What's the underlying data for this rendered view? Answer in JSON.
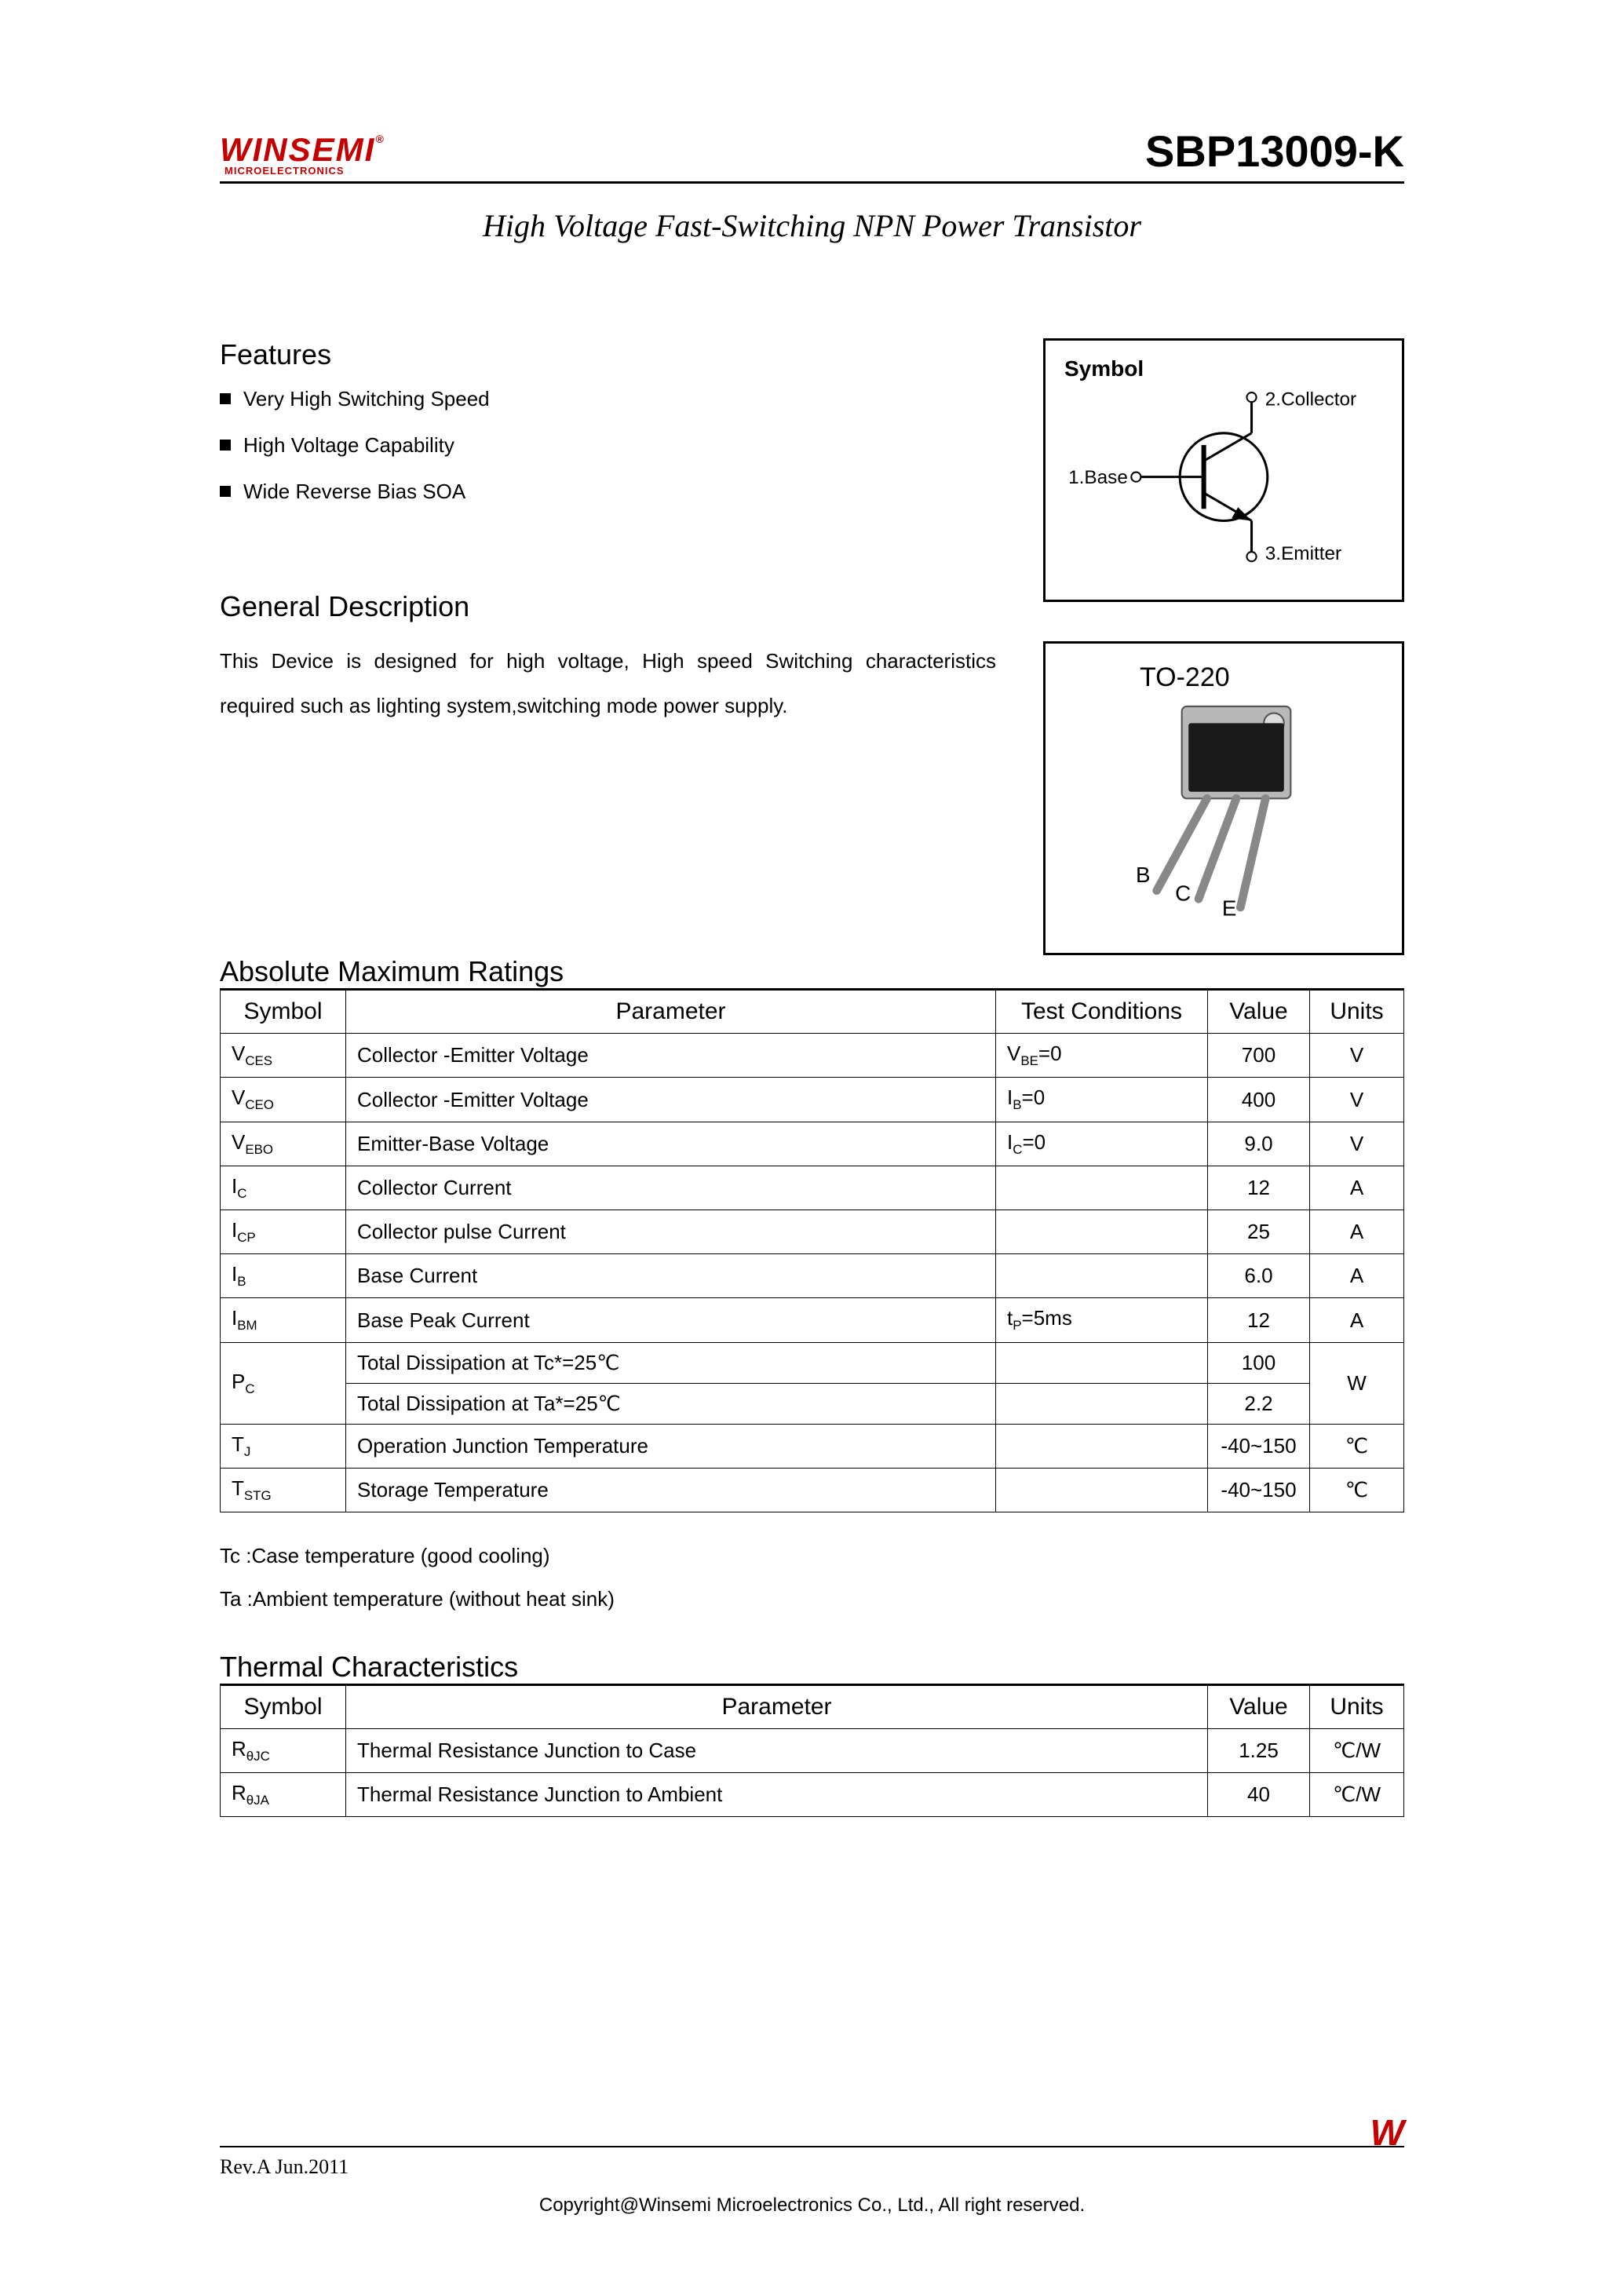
{
  "header": {
    "logo_main": "WINSEMI",
    "logo_sub": "MICROELECTRONICS",
    "part_number": "SBP13009-K"
  },
  "subtitle": "High Voltage Fast-Switching NPN Power Transistor",
  "features": {
    "title": "Features",
    "items": [
      "Very High Switching Speed",
      "High Voltage Capability",
      "Wide Reverse Bias SOA"
    ]
  },
  "symbol_diagram": {
    "title": "Symbol",
    "pins": {
      "base": "1.Base",
      "collector": "2.Collector",
      "emitter": "3.Emitter"
    }
  },
  "package": {
    "label": "TO-220",
    "pins": {
      "b": "B",
      "c": "C",
      "e": "E"
    }
  },
  "general_desc": {
    "title": "General Description",
    "text": "This Device is designed for high voltage, High speed Switching characteristics required such as lighting system,switching mode power supply."
  },
  "abs_max": {
    "title": "Absolute Maximum Ratings",
    "headers": [
      "Symbol",
      "Parameter",
      "Test Conditions",
      "Value",
      "Units"
    ],
    "rows": [
      {
        "symbol": "V<span class='sub'>CES</span>",
        "param": "Collector -Emitter Voltage",
        "cond": "V<span class='sub'>BE</span>=0",
        "value": "700",
        "units": "V"
      },
      {
        "symbol": "V<span class='sub'>CEO</span>",
        "param": "Collector -Emitter Voltage",
        "cond": "I<span class='sub'>B</span>=0",
        "value": "400",
        "units": "V"
      },
      {
        "symbol": "V<span class='sub'>EBO</span>",
        "param": "Emitter-Base Voltage",
        "cond": "I<span class='sub'>C</span>=0",
        "value": "9.0",
        "units": "V"
      },
      {
        "symbol": "I<span class='sub'>C</span>",
        "param": "Collector Current",
        "cond": "",
        "value": "12",
        "units": "A"
      },
      {
        "symbol": "I<span class='sub'>CP</span>",
        "param": "Collector pulse Current",
        "cond": "",
        "value": "25",
        "units": "A"
      },
      {
        "symbol": "I<span class='sub'>B</span>",
        "param": "Base Current",
        "cond": "",
        "value": "6.0",
        "units": "A"
      },
      {
        "symbol": "I<span class='sub'>BM</span>",
        "param": "Base Peak Current",
        "cond": "t<span class='sub'>P</span>=5ms",
        "value": "12",
        "units": "A"
      }
    ],
    "pc_rows": {
      "symbol": "P<span class='sub'>C</span>",
      "r1": {
        "param": "Total Dissipation at Tc*=25℃",
        "cond": "",
        "value": "100"
      },
      "r2": {
        "param": "Total Dissipation at Ta*=25℃",
        "cond": "",
        "value": "2.2"
      },
      "units": "W"
    },
    "tail_rows": [
      {
        "symbol": "T<span class='sub'>J</span>",
        "param": "Operation Junction Temperature",
        "cond": "",
        "value": "-40~150",
        "units": "℃"
      },
      {
        "symbol": "T<span class='sub'>STG</span>",
        "param": "Storage Temperature",
        "cond": "",
        "value": "-40~150",
        "units": "℃"
      }
    ]
  },
  "notes": {
    "tc": "Tc :Case temperature (good cooling)",
    "ta": "Ta :Ambient temperature (without heat sink)"
  },
  "thermal": {
    "title": "Thermal Characteristics",
    "headers": [
      "Symbol",
      "Parameter",
      "Value",
      "Units"
    ],
    "rows": [
      {
        "symbol": "R<span class='sub'>θJC</span>",
        "param": "Thermal Resistance Junction to Case",
        "value": "1.25",
        "units": "℃/W"
      },
      {
        "symbol": "R<span class='sub'>θJA</span>",
        "param": "Thermal Resistance Junction to Ambient",
        "value": "40",
        "units": "℃/W"
      }
    ]
  },
  "footer": {
    "rev": "Rev.A Jun.2011",
    "logo": "W",
    "copy": "Copyright@Winsemi Microelectronics Co., Ltd., All right reserved."
  }
}
